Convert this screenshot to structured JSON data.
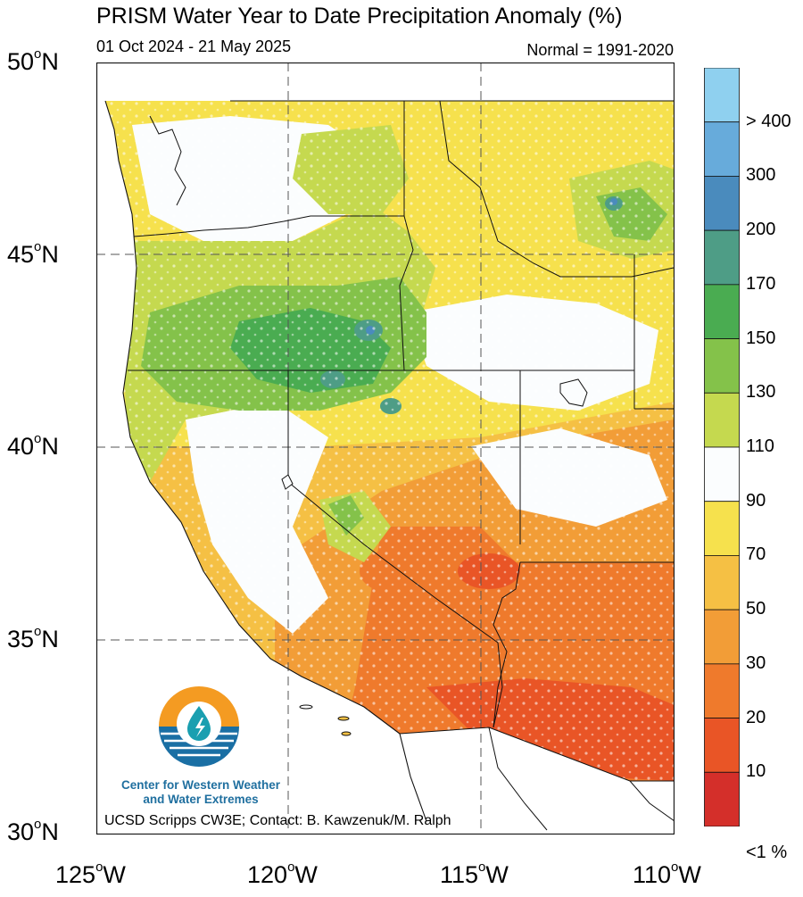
{
  "header": {
    "title": "PRISM Water Year to Date Precipitation Anomaly (%)",
    "date_range": "01 Oct 2024 - 21 May 2025",
    "normal": "Normal = 1991-2020"
  },
  "axes": {
    "lat_labels": [
      "50",
      "45",
      "40",
      "35",
      "30"
    ],
    "lat_suffix": "N",
    "lon_labels": [
      "125",
      "120",
      "115",
      "110"
    ],
    "lon_suffix": "W",
    "degree_symbol": "o"
  },
  "colorbar": {
    "labels": [
      "> 400",
      "300",
      "200",
      "170",
      "150",
      "130",
      "110",
      "90",
      "70",
      "50",
      "30",
      "20",
      "10",
      "<1 %"
    ],
    "colors": [
      "#8fd0ef",
      "#67abdb",
      "#4a8bbd",
      "#4e9d86",
      "#4aac51",
      "#84c24a",
      "#c5d94f",
      "#fbfdfe",
      "#f6e14d",
      "#f5c044",
      "#f29d37",
      "#ef7a2c",
      "#e95526",
      "#d42f2a"
    ]
  },
  "logo": {
    "line1": "Center for Western Weather",
    "line2": "and Water Extremes",
    "colors": {
      "orange": "#f49b22",
      "blue": "#1a6fa4",
      "teal": "#1a9fb0"
    }
  },
  "footer": {
    "credit": "UCSD Scripps CW3E; Contact: B. Kawzenuk/M. Ralph"
  },
  "regions": [
    {
      "name": "northwest-outer-above-normal",
      "anomaly_class": "110"
    },
    {
      "name": "idaho-oregon-core-above-normal",
      "anomaly_class": "130-150"
    },
    {
      "name": "california-central-near-normal",
      "anomaly_class": "90-110"
    },
    {
      "name": "southwest-dry",
      "anomaly_class": "30-50"
    },
    {
      "name": "arizona-very-dry",
      "anomaly_class": "10-20"
    }
  ]
}
